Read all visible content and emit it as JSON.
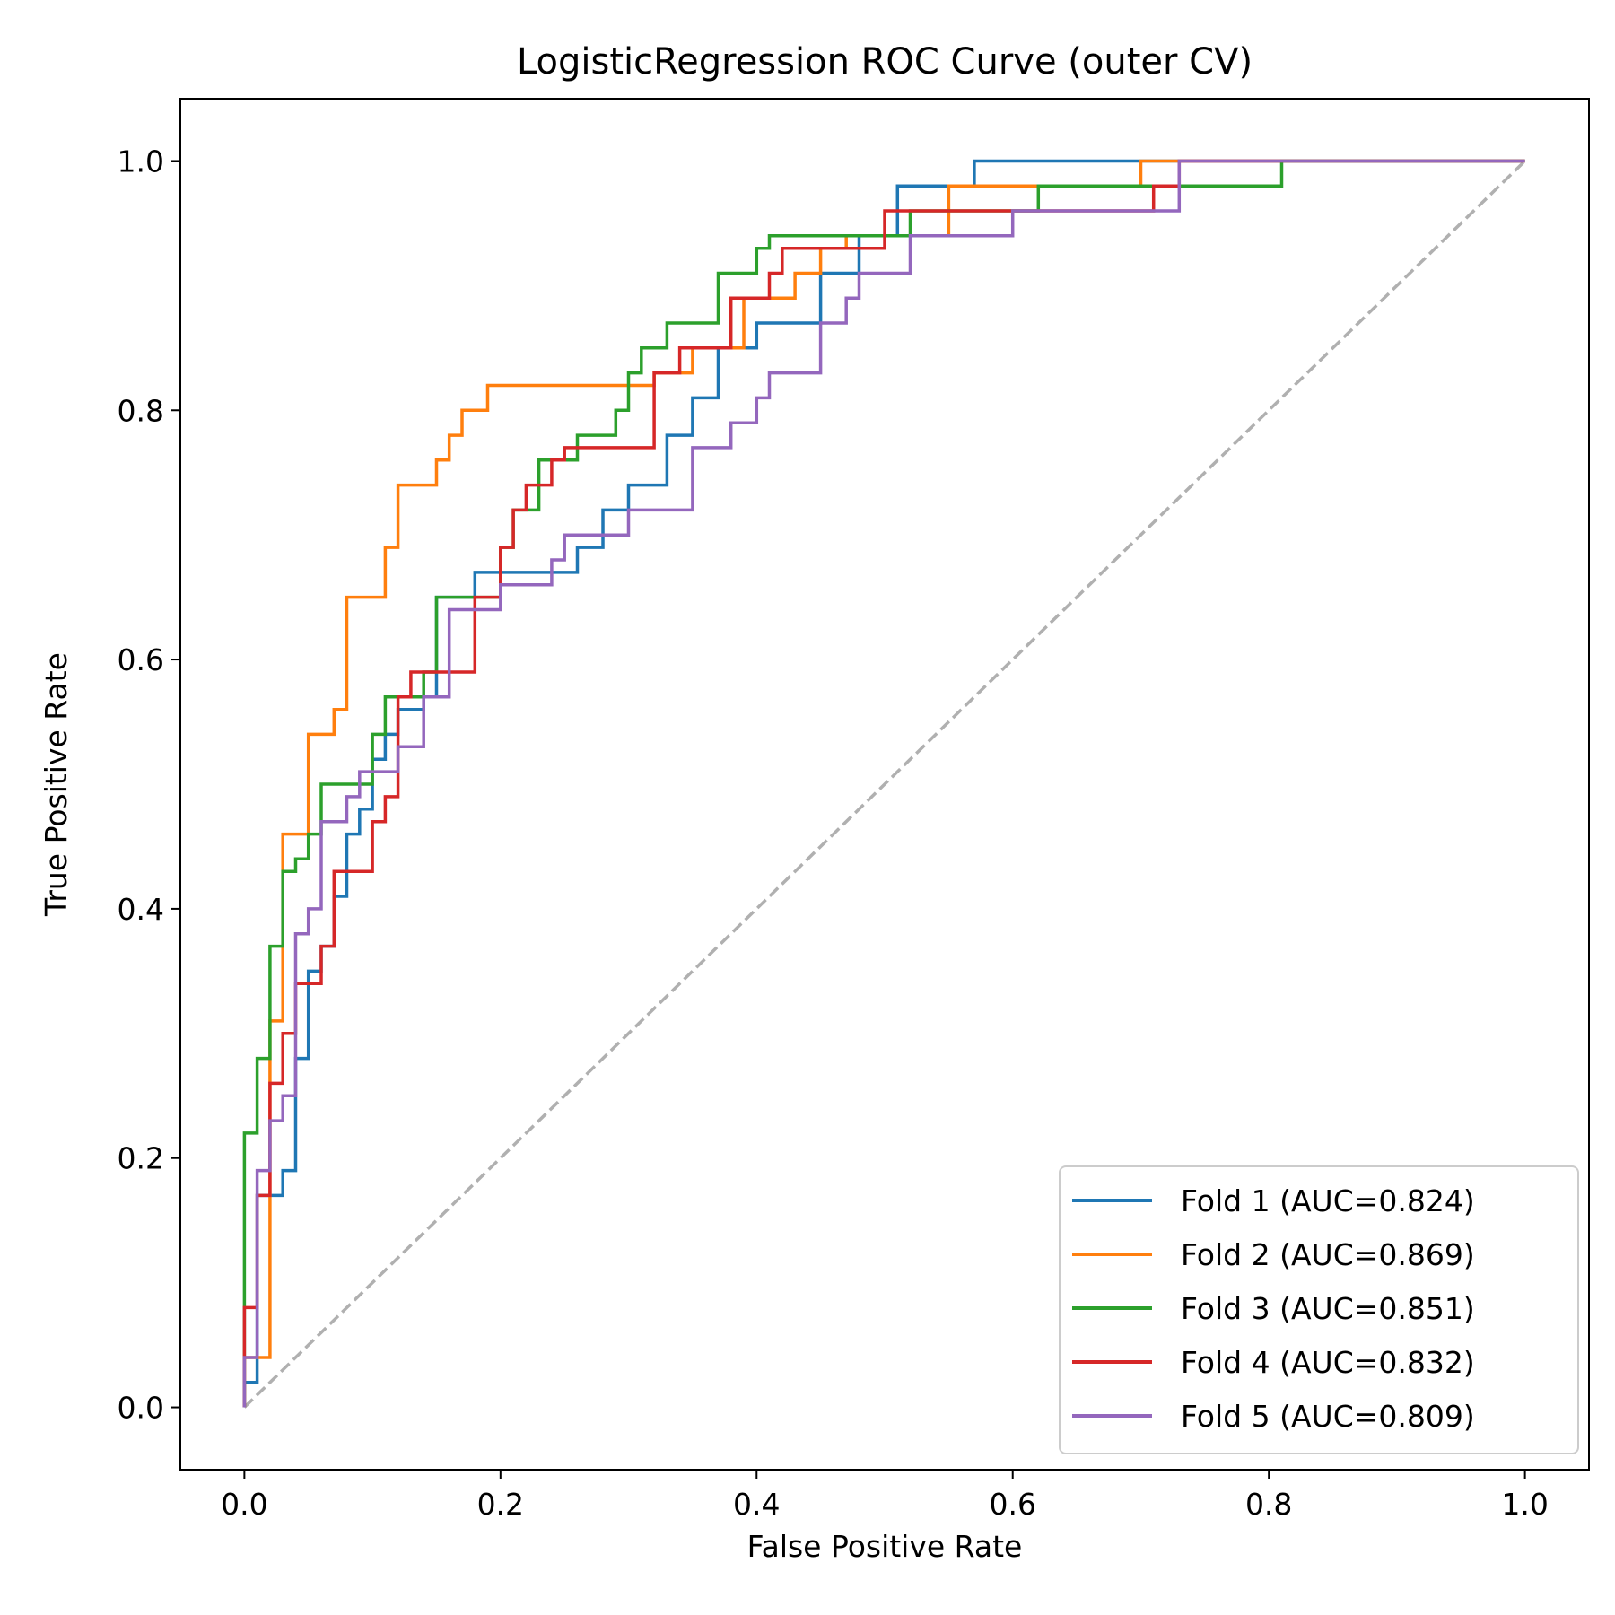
{
  "chart_data": {
    "type": "line",
    "title": "LogisticRegression ROC Curve (outer CV)",
    "xlabel": "False Positive Rate",
    "ylabel": "True Positive Rate",
    "xlim": [
      -0.05,
      1.05
    ],
    "ylim": [
      -0.05,
      1.05
    ],
    "xticks": [
      "0.0",
      "0.2",
      "0.4",
      "0.6",
      "0.8",
      "1.0"
    ],
    "yticks": [
      "0.0",
      "0.2",
      "0.4",
      "0.6",
      "0.8",
      "1.0"
    ],
    "grid": false,
    "legend_position": "lower-right",
    "baseline": {
      "style": "dashed",
      "color": "#b0b0b0",
      "x": [
        0,
        1
      ],
      "y": [
        0,
        1
      ]
    },
    "series": [
      {
        "name": "Fold 1 (AUC=0.824)",
        "color": "#1f77b4",
        "x": [
          0,
          0,
          0.01,
          0.01,
          0.03,
          0.03,
          0.04,
          0.04,
          0.05,
          0.05,
          0.06,
          0.06,
          0.07,
          0.07,
          0.08,
          0.08,
          0.09,
          0.09,
          0.1,
          0.1,
          0.11,
          0.11,
          0.12,
          0.12,
          0.14,
          0.14,
          0.15,
          0.15,
          0.18,
          0.18,
          0.26,
          0.26,
          0.28,
          0.28,
          0.3,
          0.3,
          0.33,
          0.33,
          0.35,
          0.35,
          0.37,
          0.37,
          0.4,
          0.4,
          0.45,
          0.45,
          0.48,
          0.48,
          0.51,
          0.51,
          0.57,
          0.57,
          1.0
        ],
        "y": [
          0,
          0.02,
          0.02,
          0.17,
          0.17,
          0.19,
          0.19,
          0.28,
          0.28,
          0.35,
          0.35,
          0.37,
          0.37,
          0.41,
          0.41,
          0.46,
          0.46,
          0.48,
          0.48,
          0.52,
          0.52,
          0.54,
          0.54,
          0.56,
          0.56,
          0.57,
          0.57,
          0.65,
          0.65,
          0.67,
          0.67,
          0.69,
          0.69,
          0.72,
          0.72,
          0.74,
          0.74,
          0.78,
          0.78,
          0.81,
          0.81,
          0.85,
          0.85,
          0.87,
          0.87,
          0.91,
          0.91,
          0.94,
          0.94,
          0.98,
          0.98,
          1.0,
          1.0
        ]
      },
      {
        "name": "Fold 2 (AUC=0.869)",
        "color": "#ff7f0e",
        "x": [
          0,
          0,
          0.02,
          0.02,
          0.03,
          0.03,
          0.05,
          0.05,
          0.07,
          0.07,
          0.08,
          0.08,
          0.11,
          0.11,
          0.12,
          0.12,
          0.15,
          0.15,
          0.16,
          0.16,
          0.17,
          0.17,
          0.19,
          0.19,
          0.32,
          0.32,
          0.35,
          0.35,
          0.39,
          0.39,
          0.43,
          0.43,
          0.45,
          0.45,
          0.47,
          0.47,
          0.55,
          0.55,
          0.7,
          0.7,
          1.0
        ],
        "y": [
          0,
          0.04,
          0.04,
          0.31,
          0.31,
          0.46,
          0.46,
          0.54,
          0.54,
          0.56,
          0.56,
          0.65,
          0.65,
          0.69,
          0.69,
          0.74,
          0.74,
          0.76,
          0.76,
          0.78,
          0.78,
          0.8,
          0.8,
          0.82,
          0.82,
          0.83,
          0.83,
          0.85,
          0.85,
          0.89,
          0.89,
          0.91,
          0.91,
          0.93,
          0.93,
          0.94,
          0.94,
          0.98,
          0.98,
          1.0,
          1.0
        ]
      },
      {
        "name": "Fold 3 (AUC=0.851)",
        "color": "#2ca02c",
        "x": [
          0,
          0,
          0.01,
          0.01,
          0.02,
          0.02,
          0.03,
          0.03,
          0.04,
          0.04,
          0.05,
          0.05,
          0.06,
          0.06,
          0.1,
          0.1,
          0.11,
          0.11,
          0.14,
          0.14,
          0.15,
          0.15,
          0.2,
          0.2,
          0.21,
          0.21,
          0.23,
          0.23,
          0.26,
          0.26,
          0.29,
          0.29,
          0.3,
          0.3,
          0.31,
          0.31,
          0.33,
          0.33,
          0.37,
          0.37,
          0.4,
          0.4,
          0.41,
          0.41,
          0.52,
          0.52,
          0.62,
          0.62,
          0.81,
          0.81,
          1.0
        ],
        "y": [
          0,
          0.22,
          0.22,
          0.28,
          0.28,
          0.37,
          0.37,
          0.43,
          0.43,
          0.44,
          0.44,
          0.46,
          0.46,
          0.5,
          0.5,
          0.54,
          0.54,
          0.57,
          0.57,
          0.59,
          0.59,
          0.65,
          0.65,
          0.69,
          0.69,
          0.72,
          0.72,
          0.76,
          0.76,
          0.78,
          0.78,
          0.8,
          0.8,
          0.83,
          0.83,
          0.85,
          0.85,
          0.87,
          0.87,
          0.91,
          0.91,
          0.93,
          0.93,
          0.94,
          0.94,
          0.96,
          0.96,
          0.98,
          0.98,
          1.0,
          1.0
        ]
      },
      {
        "name": "Fold 4 (AUC=0.832)",
        "color": "#d62728",
        "x": [
          0,
          0,
          0.01,
          0.01,
          0.02,
          0.02,
          0.03,
          0.03,
          0.04,
          0.04,
          0.06,
          0.06,
          0.07,
          0.07,
          0.1,
          0.1,
          0.11,
          0.11,
          0.12,
          0.12,
          0.13,
          0.13,
          0.15,
          0.15,
          0.18,
          0.18,
          0.2,
          0.2,
          0.21,
          0.21,
          0.22,
          0.22,
          0.24,
          0.24,
          0.25,
          0.25,
          0.26,
          0.26,
          0.32,
          0.32,
          0.34,
          0.34,
          0.38,
          0.38,
          0.41,
          0.41,
          0.42,
          0.42,
          0.5,
          0.5,
          0.71,
          0.71,
          0.73,
          0.73,
          1.0
        ],
        "y": [
          0,
          0.08,
          0.08,
          0.17,
          0.17,
          0.26,
          0.26,
          0.3,
          0.3,
          0.34,
          0.34,
          0.37,
          0.37,
          0.43,
          0.43,
          0.47,
          0.47,
          0.49,
          0.49,
          0.57,
          0.57,
          0.59,
          0.59,
          0.59,
          0.59,
          0.65,
          0.65,
          0.69,
          0.69,
          0.72,
          0.72,
          0.74,
          0.74,
          0.76,
          0.76,
          0.77,
          0.77,
          0.77,
          0.77,
          0.83,
          0.83,
          0.85,
          0.85,
          0.89,
          0.89,
          0.91,
          0.91,
          0.93,
          0.93,
          0.96,
          0.96,
          0.98,
          0.98,
          1.0,
          1.0
        ]
      },
      {
        "name": "Fold 5 (AUC=0.809)",
        "color": "#9467bd",
        "x": [
          0,
          0,
          0.01,
          0.01,
          0.02,
          0.02,
          0.03,
          0.03,
          0.04,
          0.04,
          0.05,
          0.05,
          0.06,
          0.06,
          0.08,
          0.08,
          0.09,
          0.09,
          0.12,
          0.12,
          0.14,
          0.14,
          0.16,
          0.16,
          0.2,
          0.2,
          0.24,
          0.24,
          0.25,
          0.25,
          0.3,
          0.3,
          0.35,
          0.35,
          0.38,
          0.38,
          0.4,
          0.4,
          0.41,
          0.41,
          0.45,
          0.45,
          0.47,
          0.47,
          0.48,
          0.48,
          0.52,
          0.52,
          0.6,
          0.6,
          0.73,
          0.73,
          1.0
        ],
        "y": [
          0,
          0.04,
          0.04,
          0.19,
          0.19,
          0.23,
          0.23,
          0.25,
          0.25,
          0.38,
          0.38,
          0.4,
          0.4,
          0.47,
          0.47,
          0.49,
          0.49,
          0.51,
          0.51,
          0.53,
          0.53,
          0.57,
          0.57,
          0.64,
          0.64,
          0.66,
          0.66,
          0.68,
          0.68,
          0.7,
          0.7,
          0.72,
          0.72,
          0.77,
          0.77,
          0.79,
          0.79,
          0.81,
          0.81,
          0.83,
          0.83,
          0.87,
          0.87,
          0.89,
          0.89,
          0.91,
          0.91,
          0.94,
          0.94,
          0.96,
          0.96,
          1.0,
          1.0
        ]
      }
    ]
  }
}
